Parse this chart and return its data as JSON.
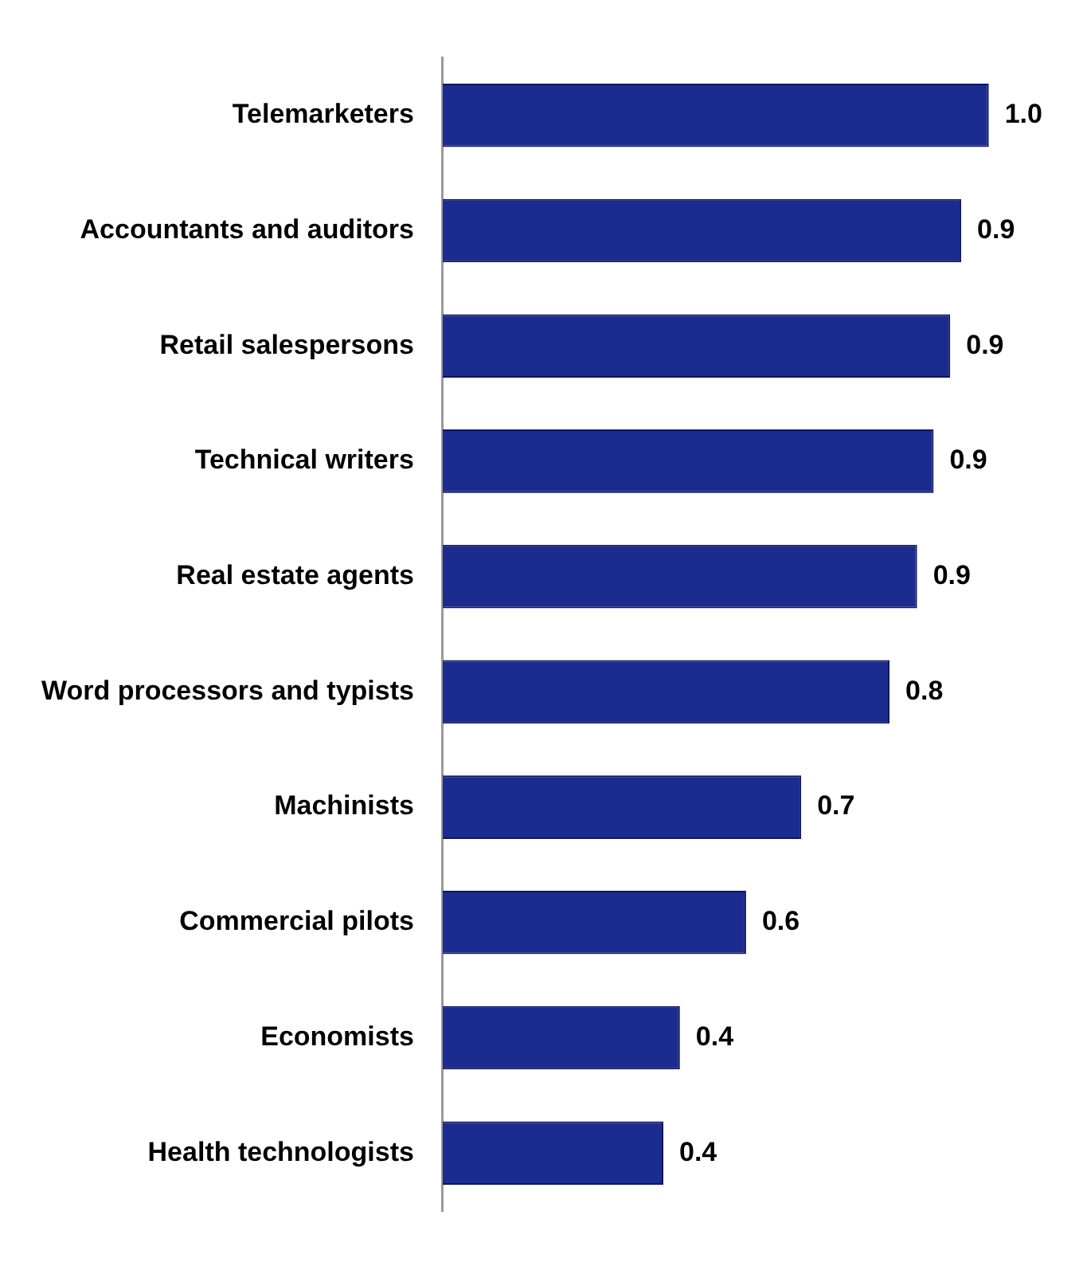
{
  "chart_data": {
    "type": "bar",
    "orientation": "horizontal",
    "categories": [
      "Telemarketers",
      "Accountants and auditors",
      "Retail salespersons",
      "Technical writers",
      "Real estate agents",
      "Word processors and typists",
      "Machinists",
      "Commercial pilots",
      "Economists",
      "Health technologists"
    ],
    "values": [
      0.99,
      0.94,
      0.92,
      0.89,
      0.86,
      0.81,
      0.65,
      0.55,
      0.43,
      0.4
    ],
    "value_labels": [
      "1.0",
      "0.9",
      "0.9",
      "0.9",
      "0.9",
      "0.8",
      "0.7",
      "0.6",
      "0.4",
      "0.4"
    ],
    "color": "#1c2b8f"
  }
}
